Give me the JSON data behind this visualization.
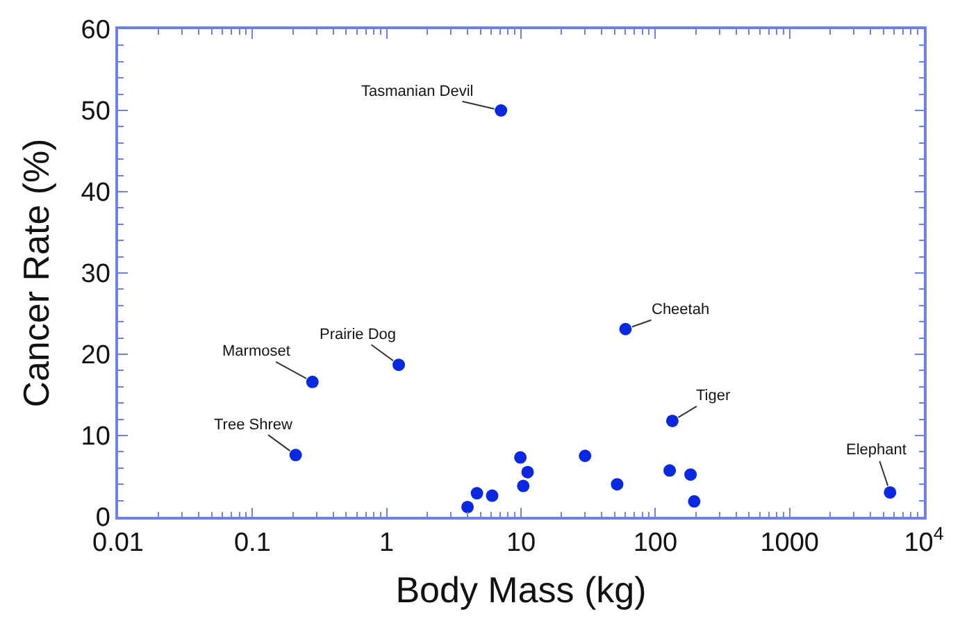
{
  "chart_data": {
    "type": "scatter",
    "xlabel": "Body Mass (kg)",
    "ylabel": "Cancer Rate (%)",
    "log": "x",
    "xlim": [
      0.01,
      10000
    ],
    "xticks": [
      0.01,
      0.1,
      1,
      10,
      100,
      1000,
      {
        "value": 10000,
        "label": "10$^{4}$"
      }
    ],
    "ylim": [
      0,
      60
    ],
    "yticks": [
      0,
      10,
      20,
      30,
      40,
      50,
      60
    ],
    "marker": "circle",
    "series": [
      {
        "color": "#0a28e0",
        "x": [
          7.1,
          60,
          1.23,
          0.28,
          0.21,
          134,
          5600,
          9.9,
          30,
          11.2,
          10.4,
          52,
          128,
          183,
          195,
          4.7,
          6.1,
          4.0
        ],
        "values": [
          50,
          23.1,
          18.7,
          16.6,
          7.6,
          11.8,
          3.0,
          7.3,
          7.5,
          5.5,
          3.8,
          4.0,
          5.7,
          5.2,
          1.9,
          2.9,
          2.6,
          1.2
        ]
      }
    ],
    "annotations": [
      {
        "text": "Tasmanian Devil",
        "x": 7.1,
        "y": 50
      },
      {
        "text": "Cheetah",
        "x": 60,
        "y": 23.1
      },
      {
        "text": "Prairie Dog",
        "x": 1.23,
        "y": 18.7
      },
      {
        "text": "Marmoset",
        "x": 0.28,
        "y": 16.6
      },
      {
        "text": "Tree Shrew",
        "x": 0.21,
        "y": 7.6
      },
      {
        "text": "Tiger",
        "x": 134,
        "y": 11.8
      },
      {
        "text": "Elephant",
        "x": 5600,
        "y": 3.0
      }
    ]
  }
}
